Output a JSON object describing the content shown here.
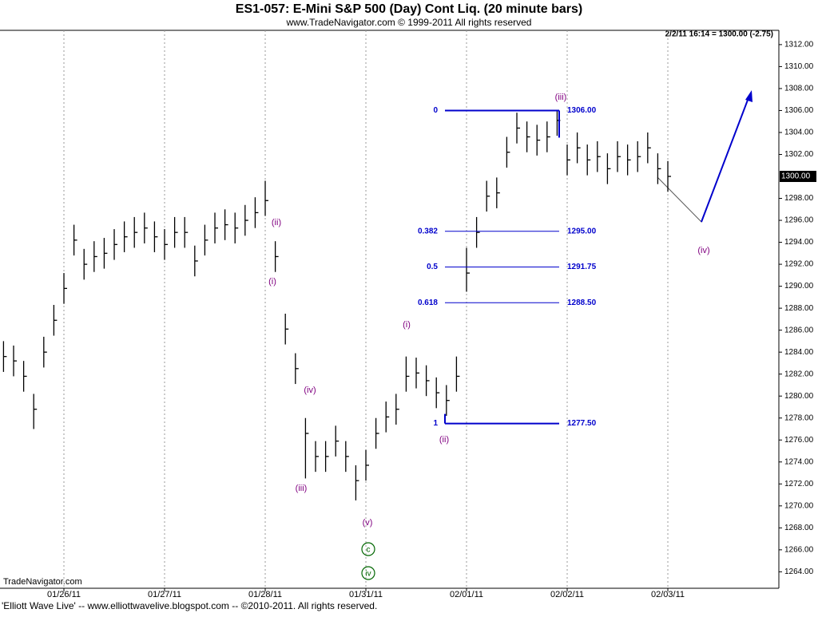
{
  "chart_data": {
    "type": "ohlc",
    "title": "ES1-057:  E-Mini S&P 500 (Day) Cont Liq.  (20 minute bars)",
    "subtitle": "www.TradeNavigator.com © 1999-2011 All rights reserved",
    "info": "2/2/11 16:14 = 1300.00 (-2.75)",
    "watermark": "TradeNavigator.com",
    "footer": "'Elliott Wave Live' -- www.elliottwavelive.blogspot.com -- ©2010-2011. All rights reserved.",
    "color": "#000000",
    "x": [
      -6,
      -5,
      -4,
      -3,
      -2,
      -1,
      0,
      1,
      2,
      3,
      4,
      5,
      6,
      7,
      8,
      9,
      10,
      11,
      12,
      13,
      14,
      15,
      16,
      17,
      18,
      19,
      20,
      21,
      22,
      23,
      24,
      25,
      26,
      27,
      28,
      29,
      30,
      31,
      32,
      33,
      34,
      35,
      36,
      37,
      38,
      39,
      40,
      41,
      42,
      43,
      44,
      45,
      46,
      47,
      48,
      49,
      50,
      51,
      52,
      53,
      54,
      55,
      56,
      57,
      58,
      59,
      60
    ],
    "high": [
      1285,
      1284.6,
      1283.2,
      1280.2,
      1285.4,
      1288.3,
      1291.2,
      1295.6,
      1293.4,
      1294.1,
      1294.4,
      1295.2,
      1295.9,
      1296.3,
      1296.7,
      1295.9,
      1295.2,
      1296.3,
      1296.3,
      1293.7,
      1295.6,
      1296.7,
      1297,
      1296.7,
      1297.4,
      1298.1,
      1299.6,
      1294.1,
      1287.5,
      1283.9,
      1278,
      1275.9,
      1275.9,
      1277.3,
      1275.9,
      1273.7,
      1275.1,
      1278,
      1279.5,
      1280.2,
      1283.6,
      1283.5,
      1282.8,
      1281.7,
      1281,
      1283.6,
      1293.5,
      1296.3,
      1299.6,
      1299.9,
      1303.6,
      1305.8,
      1305,
      1304.7,
      1305,
      1306,
      1302.9,
      1304,
      1302.9,
      1303.2,
      1302.1,
      1303.2,
      1302.9,
      1303.2,
      1304,
      1302.1,
      1301.4
    ],
    "low": [
      1282.2,
      1281.8,
      1280.4,
      1277,
      1282.6,
      1285.5,
      1288.4,
      1292.8,
      1290.6,
      1291.3,
      1291.6,
      1292.4,
      1293.1,
      1293.5,
      1293.9,
      1293.1,
      1292.4,
      1293.5,
      1293.5,
      1290.9,
      1292.8,
      1293.9,
      1294.2,
      1293.9,
      1294.6,
      1295.3,
      1296.4,
      1291.3,
      1284.7,
      1281.1,
      1272.5,
      1273.1,
      1273.1,
      1274.5,
      1273.1,
      1270.5,
      1272.3,
      1275.2,
      1276.7,
      1277.4,
      1280.4,
      1280.7,
      1280,
      1278.9,
      1278.2,
      1280.4,
      1289.5,
      1293.5,
      1296.8,
      1297.1,
      1300.8,
      1303,
      1302.2,
      1301.9,
      1302.2,
      1303.7,
      1300.1,
      1301.2,
      1300.1,
      1300.4,
      1299.3,
      1300.4,
      1300.1,
      1300.4,
      1301.2,
      1299.3,
      1298.6
    ],
    "close": [
      1283.6,
      1283.2,
      1281.8,
      1278.8,
      1284,
      1286.9,
      1289.8,
      1294.2,
      1292,
      1292.7,
      1293,
      1293.8,
      1294.5,
      1294.9,
      1295.3,
      1294.5,
      1293.8,
      1294.9,
      1294.9,
      1292.3,
      1294.2,
      1295.3,
      1295.6,
      1295.3,
      1296,
      1296.7,
      1297.8,
      1292.7,
      1286.1,
      1282.5,
      1276.6,
      1274.5,
      1274.5,
      1275.9,
      1274.5,
      1272.3,
      1273.7,
      1276.6,
      1278.1,
      1278.8,
      1281.8,
      1282.1,
      1281.4,
      1280.3,
      1279.6,
      1281.8,
      1291.2,
      1294.9,
      1298.2,
      1298.5,
      1302.2,
      1304.4,
      1303.6,
      1303.3,
      1303.6,
      1305.1,
      1301.5,
      1302.6,
      1301.5,
      1301.8,
      1300.7,
      1301.8,
      1301.5,
      1301.8,
      1302.6,
      1300.7,
      1300
    ],
    "xlim": [
      -6.35,
      71.03
    ],
    "xticks": [
      {
        "value": 0,
        "label": "01/26/11"
      },
      {
        "value": 10,
        "label": "01/27/11"
      },
      {
        "value": 20,
        "label": "01/28/11"
      },
      {
        "value": 30,
        "label": "01/31/11"
      },
      {
        "value": 40,
        "label": "02/01/11"
      },
      {
        "value": 50,
        "label": "02/02/11"
      },
      {
        "value": 60,
        "label": "02/03/11"
      }
    ],
    "ylim": [
      1262.5,
      1313.3
    ],
    "yticks": [
      {
        "value": 1264,
        "label": "1264.00"
      },
      {
        "value": 1266,
        "label": "1266.00"
      },
      {
        "value": 1268,
        "label": "1268.00"
      },
      {
        "value": 1270,
        "label": "1270.00"
      },
      {
        "value": 1272,
        "label": "1272.00"
      },
      {
        "value": 1274,
        "label": "1274.00"
      },
      {
        "value": 1276,
        "label": "1276.00"
      },
      {
        "value": 1278,
        "label": "1278.00"
      },
      {
        "value": 1280,
        "label": "1280.00"
      },
      {
        "value": 1282,
        "label": "1282.00"
      },
      {
        "value": 1284,
        "label": "1284.00"
      },
      {
        "value": 1286,
        "label": "1286.00"
      },
      {
        "value": 1288,
        "label": "1288.00"
      },
      {
        "value": 1290,
        "label": "1290.00"
      },
      {
        "value": 1292,
        "label": "1292.00"
      },
      {
        "value": 1294,
        "label": "1294.00"
      },
      {
        "value": 1296,
        "label": "1296.00"
      },
      {
        "value": 1298,
        "label": "1298.00"
      },
      {
        "value": 1302,
        "label": "1302.00"
      },
      {
        "value": 1304,
        "label": "1304.00"
      },
      {
        "value": 1306,
        "label": "1306.00"
      },
      {
        "value": 1308,
        "label": "1308.00"
      },
      {
        "value": 1310,
        "label": "1310.00"
      },
      {
        "value": 1312,
        "label": "1312.00"
      }
    ],
    "last_price": {
      "value": 1300,
      "label": "1300.00"
    },
    "grid": "x",
    "fib_color": "#0000cc",
    "fib_levels": [
      0,
      0.382,
      0.5,
      0.618,
      1
    ],
    "fib_prices": [
      1306,
      1295,
      1291.75,
      1288.5,
      1277.5
    ],
    "fib_price_labels": [
      "1306.00",
      "1295.00",
      "1291.75",
      "1288.50",
      "1277.50"
    ],
    "annotation_color": "#800080",
    "annotations": [
      "(iii)",
      "(ii)",
      "(i)",
      "(iv)",
      "(iii)",
      "(v)",
      "(i)",
      "(ii)",
      "(iv)"
    ],
    "circled_color": "#006600",
    "circled_annotations": [
      "c",
      "iv"
    ]
  }
}
